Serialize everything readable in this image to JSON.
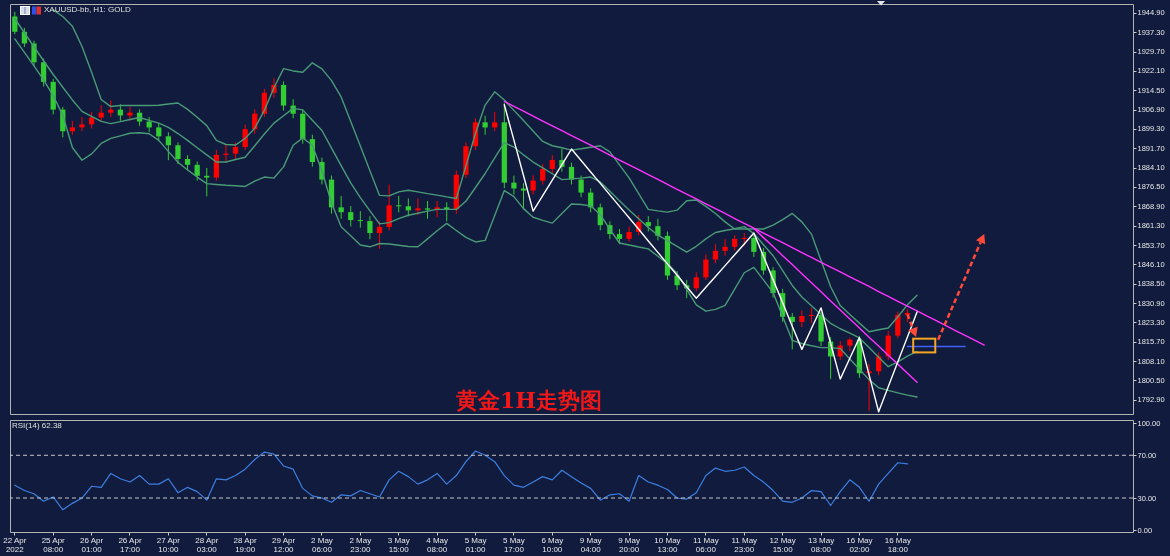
{
  "chart_data": [
    {
      "type": "candlestick",
      "title": "XAUUSD-bb, H1: GOLD",
      "annotations": [
        "黄金1H走势图"
      ],
      "categories": [
        null,
        null,
        null,
        null,
        null,
        null,
        null,
        null,
        null,
        null,
        null,
        null,
        null,
        null,
        null,
        null,
        null,
        null,
        null,
        null,
        null,
        null,
        null,
        null,
        null,
        null,
        null,
        null,
        null,
        null,
        null,
        null,
        null,
        null,
        null,
        null,
        null,
        null,
        null,
        null,
        null,
        null,
        null,
        null,
        null,
        null,
        null,
        null,
        null,
        null,
        null,
        null,
        null,
        null,
        null,
        null,
        null,
        null,
        null,
        null,
        null,
        null,
        null,
        null,
        null,
        null,
        null,
        null,
        null,
        null,
        null,
        null,
        null,
        null,
        null,
        null,
        null,
        null,
        null,
        null,
        null,
        null,
        null,
        null,
        null,
        null,
        null,
        null,
        null,
        null,
        null,
        null,
        null,
        null,
        null,
        null,
        null,
        null,
        null,
        null,
        null,
        null,
        null,
        null,
        null,
        null,
        null,
        null,
        null,
        null,
        null,
        null,
        null,
        null,
        null,
        null,
        null
      ],
      "ohlc": [
        [
          1943.5,
          1945.3,
          1936.5,
          1937.5
        ],
        [
          1937.5,
          1939,
          1931.5,
          1932.9
        ],
        [
          1932.9,
          1934,
          1924,
          1925.5
        ],
        [
          1925.5,
          1927,
          1916,
          1917.8
        ],
        [
          1917.8,
          1919,
          1905,
          1906.9
        ],
        [
          1906.9,
          1908,
          1896,
          1898.4
        ],
        [
          1898.4,
          1902.5,
          1897,
          1899.9
        ],
        [
          1899.9,
          1904,
          1898.5,
          1901.1
        ],
        [
          1901.1,
          1906,
          1899.5,
          1903.8
        ],
        [
          1903.8,
          1908.5,
          1902,
          1905.7
        ],
        [
          1905.7,
          1910.5,
          1904,
          1906.9
        ],
        [
          1906.9,
          1909,
          1902.5,
          1904.6
        ],
        [
          1904.6,
          1908,
          1902.5,
          1905.7
        ],
        [
          1905.7,
          1907,
          1900.5,
          1902.2
        ],
        [
          1902.2,
          1904,
          1898,
          1899.9
        ],
        [
          1899.9,
          1901.5,
          1894.5,
          1896.4
        ],
        [
          1896.4,
          1898,
          1887,
          1892.9
        ],
        [
          1892.9,
          1894,
          1885.5,
          1887.5
        ],
        [
          1887.5,
          1889,
          1883.5,
          1885.2
        ],
        [
          1885.2,
          1886.5,
          1879,
          1880.9
        ],
        [
          1880.9,
          1884,
          1872.8,
          1880.2
        ],
        [
          1880.2,
          1891,
          1879,
          1889.1
        ],
        [
          1889.1,
          1893,
          1886,
          1889.6
        ],
        [
          1889.6,
          1894,
          1887.5,
          1892.2
        ],
        [
          1892.2,
          1901,
          1891,
          1899.2
        ],
        [
          1899.2,
          1907,
          1897.5,
          1905.3
        ],
        [
          1905.3,
          1915,
          1904,
          1913.5
        ],
        [
          1913.5,
          1919.3,
          1911.5,
          1916.6
        ],
        [
          1916.6,
          1918,
          1906.5,
          1908.5
        ],
        [
          1908.5,
          1911,
          1903.5,
          1905.3
        ],
        [
          1905.3,
          1907,
          1893.5,
          1895.3
        ],
        [
          1895.3,
          1897,
          1884.5,
          1886.3
        ],
        [
          1886.3,
          1888,
          1877.5,
          1879.4
        ],
        [
          1879.4,
          1881,
          1866,
          1868.5
        ],
        [
          1868.5,
          1873,
          1864,
          1866.6
        ],
        [
          1866.6,
          1869,
          1861,
          1863.5
        ],
        [
          1863.5,
          1867,
          1860.5,
          1863.1
        ],
        [
          1863.1,
          1865,
          1856,
          1858.4
        ],
        [
          1858.4,
          1863,
          1852.2,
          1860.8
        ],
        [
          1860.8,
          1877.5,
          1859.5,
          1869.3
        ],
        [
          1869.3,
          1873,
          1866.5,
          1868.9
        ],
        [
          1868.9,
          1872,
          1865,
          1867.3
        ],
        [
          1867.3,
          1872,
          1865.5,
          1868.1
        ],
        [
          1868.1,
          1871,
          1864,
          1867.6
        ],
        [
          1867.6,
          1871,
          1864.5,
          1868.5
        ],
        [
          1868.5,
          1870.5,
          1863,
          1867.7
        ],
        [
          1867.7,
          1883,
          1866,
          1881.3
        ],
        [
          1881.3,
          1894,
          1880,
          1892.5
        ],
        [
          1892.5,
          1903.5,
          1891,
          1901.9
        ],
        [
          1901.9,
          1904.5,
          1897,
          1899.9
        ],
        [
          1899.9,
          1906,
          1898.5,
          1901.9
        ],
        [
          1901.9,
          1909.6,
          1876,
          1878.2
        ],
        [
          1878.2,
          1881,
          1873.5,
          1875.9
        ],
        [
          1875.9,
          1878,
          1867.7,
          1875.1
        ],
        [
          1875.1,
          1881,
          1873.5,
          1879
        ],
        [
          1879,
          1885.5,
          1877.5,
          1883.6
        ],
        [
          1883.6,
          1889,
          1882,
          1887.1
        ],
        [
          1887.1,
          1891.4,
          1882.5,
          1884.4
        ],
        [
          1884.4,
          1886,
          1877.5,
          1879.4
        ],
        [
          1879.4,
          1881,
          1872.5,
          1874.3
        ],
        [
          1874.3,
          1876,
          1866.5,
          1868.5
        ],
        [
          1868.5,
          1870,
          1859.5,
          1861.5
        ],
        [
          1861.5,
          1863,
          1856,
          1858
        ],
        [
          1858,
          1860,
          1854,
          1856.1
        ],
        [
          1856.1,
          1861,
          1855,
          1858.8
        ],
        [
          1858.8,
          1865.5,
          1857.5,
          1862.7
        ],
        [
          1862.7,
          1865,
          1859,
          1861.1
        ],
        [
          1861.1,
          1864,
          1855.5,
          1857.3
        ],
        [
          1857.3,
          1859,
          1840,
          1841.7
        ],
        [
          1841.7,
          1843.5,
          1836,
          1837.9
        ],
        [
          1837.9,
          1840,
          1832.8,
          1836.7
        ],
        [
          1836.7,
          1843,
          1835.5,
          1841
        ],
        [
          1841,
          1850,
          1840,
          1848
        ],
        [
          1848,
          1854,
          1846.5,
          1851.4
        ],
        [
          1851.4,
          1856,
          1849.5,
          1853
        ],
        [
          1853,
          1857.5,
          1851.5,
          1856.1
        ],
        [
          1856.1,
          1858.4,
          1853.5,
          1856.5
        ],
        [
          1856.5,
          1858,
          1849,
          1851
        ],
        [
          1851,
          1852.5,
          1842,
          1843.7
        ],
        [
          1843.7,
          1845,
          1833,
          1834.8
        ],
        [
          1834.8,
          1836.5,
          1823.5,
          1825.5
        ],
        [
          1825.5,
          1827,
          1812.7,
          1823.5
        ],
        [
          1823.5,
          1828,
          1821.5,
          1825.8
        ],
        [
          1825.8,
          1829,
          1823,
          1826.2
        ],
        [
          1826.2,
          1827.5,
          1814,
          1815.8
        ],
        [
          1815.8,
          1817.5,
          1801,
          1809.9
        ],
        [
          1809.9,
          1816,
          1808.5,
          1814.2
        ],
        [
          1814.2,
          1817.3,
          1812,
          1816.5
        ],
        [
          1816.5,
          1818,
          1801.5,
          1803.3
        ],
        [
          1803.3,
          1807,
          1788.6,
          1804.1
        ],
        [
          1804.1,
          1811.5,
          1802.5,
          1809.9
        ],
        [
          1809.9,
          1820,
          1808.5,
          1818.1
        ],
        [
          1818.1,
          1827.5,
          1817,
          1826.2
        ],
        [
          1826.2,
          1828.5,
          1823.5,
          1827
        ],
        null,
        null,
        null,
        null,
        null,
        null,
        null,
        null,
        null,
        null,
        null,
        null,
        null,
        null,
        null,
        null,
        null,
        null,
        null,
        null,
        null,
        null,
        null
      ],
      "colors": [
        "#32cd32",
        "#32cd32",
        "#32cd32",
        "#32cd32",
        "#32cd32",
        "#32cd32",
        "#ff0000",
        "#ff0000",
        "#ff0000",
        "#ff0000",
        "#ff0000",
        "#32cd32",
        "#ff0000",
        "#32cd32",
        "#32cd32",
        "#32cd32",
        "#32cd32",
        "#32cd32",
        "#32cd32",
        "#32cd32",
        "#32cd32",
        "#ff0000",
        "#ff0000",
        "#ff0000",
        "#ff0000",
        "#ff0000",
        "#ff0000",
        "#ff0000",
        "#32cd32",
        "#32cd32",
        "#32cd32",
        "#32cd32",
        "#32cd32",
        "#32cd32",
        "#32cd32",
        "#32cd32",
        "#32cd32",
        "#32cd32",
        "#ff0000",
        "#ff0000",
        "#32cd32",
        "#32cd32",
        "#ff0000",
        "#32cd32",
        "#ff0000",
        "#32cd32",
        "#ff0000",
        "#ff0000",
        "#ff0000",
        "#32cd32",
        "#ff0000",
        "#32cd32",
        "#32cd32",
        "#32cd32",
        "#ff0000",
        "#ff0000",
        "#ff0000",
        "#32cd32",
        "#32cd32",
        "#32cd32",
        "#32cd32",
        "#32cd32",
        "#32cd32",
        "#32cd32",
        "#ff0000",
        "#ff0000",
        "#32cd32",
        "#32cd32",
        "#32cd32",
        "#32cd32",
        "#32cd32",
        "#ff0000",
        "#ff0000",
        "#ff0000",
        "#ff0000",
        "#ff0000",
        "#ff0000",
        "#32cd32",
        "#32cd32",
        "#32cd32",
        "#32cd32",
        "#32cd32",
        "#ff0000",
        "#ff0000",
        "#32cd32",
        "#32cd32",
        "#ff0000",
        "#ff0000",
        "#32cd32",
        "#ff0000",
        "#ff0000",
        "#ff0000",
        "#ff0000",
        "#ff0000",
        null,
        null,
        null,
        null,
        null,
        null,
        null,
        null,
        null,
        null,
        null,
        null,
        null,
        null,
        null,
        null,
        null,
        null,
        null,
        null,
        null,
        null,
        null
      ],
      "series": [
        {
          "type": "line",
          "color": "#4a9a78",
          "values": [
            null,
            null,
            null,
            null,
            1946.1,
            1943.5,
            1939.7,
            1931.7,
            1921.6,
            1910.9,
            1908.1,
            1908.5,
            1908.5,
            1908.5,
            1908.5,
            1908.6,
            1909.1,
            1909.5,
            1907.0,
            1903.9,
            1900.6,
            1894.8,
            1893.2,
            1893.0,
            1895.6,
            1899.6,
            1906.6,
            1915.5,
            1923.0,
            1922.1,
            1921.6,
            1925.3,
            1922.9,
            1918.3,
            1911.9,
            1902.2,
            1892.6,
            1882.9,
            1873.2,
            1873.0,
            1874.6,
            1875.2,
            1874.6,
            1873.9,
            1873.3,
            1872.6,
            1872.0,
            1884.8,
            1897.6,
            1908.7,
            1913.9,
            1910.7,
            1906.6,
            1902.6,
            1898.5,
            1894.4,
            1892.7,
            1891.9,
            1891.0,
            1891.5,
            1892.1,
            1892.7,
            1890.3,
            1885.2,
            1880.1,
            1873.9,
            1867.7,
            1867.1,
            1866.6,
            1867.4,
            1871.1,
            1871.4,
            1868.9,
            1866.1,
            1862.8,
            1860.0,
            1860.0,
            1860.0,
            1860.0,
            1861.5,
            1863.7,
            1866.1,
            1862.8,
            1858.0,
            1847.6,
            1837.3,
            1829.9,
            1826.4,
            1823.0,
            1819.6,
            1820.4,
            1821.1,
            1825.5,
            1830.2,
            1834.0,
            null,
            null,
            null,
            null,
            null,
            null,
            null,
            null,
            null,
            null,
            null,
            null,
            null,
            null,
            null,
            null,
            null,
            null,
            null,
            null,
            null,
            null
          ]
        },
        {
          "type": "line",
          "color": "#4a9a78",
          "values": [
            1942.6,
            1937.1,
            1931.6,
            1926.1,
            1920.7,
            1915.7,
            1910.7,
            1906.2,
            1904.2,
            1902.3,
            1901.4,
            1902.2,
            1903.0,
            1903.8,
            1902.7,
            1901.6,
            1899.9,
            1897.5,
            1894.8,
            1891.9,
            1889.1,
            1886.3,
            1886.3,
            1887.3,
            1888.2,
            1892.7,
            1897.3,
            1901.6,
            1904.5,
            1907.4,
            1906.8,
            1902.7,
            1898.7,
            1891.8,
            1884.9,
            1878.1,
            1872.3,
            1867.1,
            1862.0,
            1862.5,
            1864.1,
            1865.4,
            1866.2,
            1867.0,
            1867.7,
            1867.7,
            1867.7,
            1870.9,
            1876.3,
            1881.8,
            1887.9,
            1893.9,
            1892.2,
            1889.1,
            1886.3,
            1884.0,
            1881.7,
            1879.4,
            1879.7,
            1880.0,
            1880.4,
            1878.5,
            1874.8,
            1871.1,
            1867.5,
            1864.0,
            1860.6,
            1857.6,
            1855.4,
            1853.2,
            1850.9,
            1853.2,
            1856.1,
            1858.6,
            1859.4,
            1860.1,
            1860.9,
            1858.2,
            1853.8,
            1849.5,
            1843.6,
            1837.8,
            1833.3,
            1829.8,
            1826.4,
            1822.9,
            1820.8,
            1819.1,
            1817.2,
            1813.4,
            1809.6,
            1805.9,
            1807.8,
            1810.0,
            1811.9,
            null,
            null,
            null,
            null,
            null,
            null,
            null,
            null,
            null,
            null,
            null,
            null,
            null,
            null,
            null,
            null,
            null,
            null,
            null,
            null,
            null,
            null
          ]
        },
        {
          "type": "line",
          "color": "#4a9a78",
          "values": [
            1934.7,
            1929.4,
            1924.1,
            1918.6,
            1912.4,
            1904.7,
            1892.0,
            1887.0,
            1889.5,
            1893.6,
            1895.6,
            1896.6,
            1897.6,
            1897.8,
            1897.4,
            1894.8,
            1890.5,
            1886.2,
            1883.2,
            1880.4,
            1877.8,
            1877.5,
            1877.2,
            1877.0,
            1876.7,
            1878.8,
            1880.4,
            1880.0,
            1884.4,
            1892.9,
            1895.8,
            1892.9,
            1882.8,
            1870.2,
            1860.9,
            1857.3,
            1853.7,
            1853.0,
            1854.3,
            1854.1,
            1853.6,
            1853.1,
            1853.0,
            1856.1,
            1859.3,
            1862.2,
            1859.4,
            1856.7,
            1854.9,
            1855.5,
            1865.3,
            1875.1,
            1872.7,
            1868.0,
            1864.6,
            1863.4,
            1862.3,
            1866.1,
            1869.8,
            1869.6,
            1869.1,
            1865.6,
            1859.8,
            1854.5,
            1853.7,
            1852.9,
            1852.2,
            1849.3,
            1846.4,
            1842.5,
            1836.3,
            1830.2,
            1827.7,
            1828.4,
            1830.0,
            1836.4,
            1842.8,
            1844.9,
            1840.0,
            1835.0,
            1825.6,
            1816.2,
            1815.0,
            1814.1,
            1813.4,
            1813.4,
            1813.0,
            1808.9,
            1804.9,
            1800.8,
            1797.6,
            1796.6,
            1795.6,
            1794.7,
            1794.0,
            null,
            null,
            null,
            null,
            null,
            null,
            null,
            null,
            null,
            null,
            null,
            null,
            null,
            null,
            null,
            null,
            null,
            null,
            null,
            null,
            null,
            null
          ]
        },
        {
          "type": "line",
          "color": "#ff33ff",
          "values": [
            null,
            null,
            null,
            null,
            null,
            null,
            null,
            null,
            null,
            null,
            null,
            null,
            null,
            null,
            null,
            null,
            null,
            null,
            null,
            null,
            null,
            null,
            null,
            null,
            null,
            null,
            null,
            null,
            null,
            null,
            null,
            null,
            null,
            null,
            null,
            null,
            null,
            null,
            null,
            null,
            null,
            null,
            null,
            null,
            null,
            null,
            null,
            null,
            null,
            null,
            null,
            1910.1,
            1908.2,
            1906.3,
            1904.3,
            1902.4,
            1900.5,
            1898.6,
            1896.7,
            1894.8,
            1892.9,
            1891.0,
            1889.0,
            1887.1,
            1885.2,
            1883.3,
            1881.4,
            1879.5,
            1877.5,
            1875.6,
            1873.7,
            1871.8,
            1869.9,
            1868.0,
            1866.1,
            1864.1,
            1862.2,
            1860.3,
            1858.4,
            1856.5,
            1854.6,
            1852.7,
            1850.7,
            1848.8,
            1846.9,
            1845.0,
            1843.1,
            1841.2,
            1839.3,
            1837.4,
            1835.4,
            1833.5,
            1831.6,
            1829.7,
            1827.8,
            1825.9,
            1824.0,
            1822.0,
            1820.1,
            1818.2,
            1816.3,
            1814.4,
            null,
            null,
            null,
            null,
            null,
            null,
            null,
            null,
            null,
            null,
            null,
            null,
            null,
            null,
            null
          ]
        },
        {
          "type": "line",
          "color": "#ff33ff",
          "values": [
            null,
            null,
            null,
            null,
            null,
            null,
            null,
            null,
            null,
            null,
            null,
            null,
            null,
            null,
            null,
            null,
            null,
            null,
            null,
            null,
            null,
            null,
            null,
            null,
            null,
            null,
            null,
            null,
            null,
            null,
            null,
            null,
            null,
            null,
            null,
            null,
            null,
            null,
            null,
            null,
            null,
            null,
            null,
            null,
            null,
            null,
            null,
            null,
            null,
            null,
            null,
            null,
            null,
            null,
            null,
            null,
            null,
            null,
            null,
            null,
            null,
            null,
            null,
            null,
            null,
            null,
            null,
            null,
            null,
            null,
            null,
            null,
            null,
            null,
            null,
            null,
            null,
            1860.2,
            1856.6,
            1853.1,
            1849.5,
            1846.0,
            1842.4,
            1838.9,
            1835.3,
            1831.7,
            1828.2,
            1824.6,
            1821.1,
            1817.5,
            1814.0,
            1810.4,
            1806.9,
            1803.3,
            1799.8,
            null,
            null,
            null,
            null,
            null,
            null,
            null,
            null,
            null,
            null,
            null,
            null,
            null,
            null,
            null,
            null,
            null,
            null,
            null,
            null,
            null,
            null
          ]
        },
        {
          "type": "line",
          "color": "#ffffff",
          "values": [
            null,
            null,
            null,
            null,
            null,
            null,
            null,
            null,
            null,
            null,
            null,
            null,
            null,
            null,
            null,
            null,
            null,
            null,
            null,
            null,
            null,
            null,
            null,
            null,
            null,
            null,
            null,
            null,
            null,
            null,
            null,
            null,
            null,
            null,
            null,
            null,
            null,
            null,
            null,
            null,
            null,
            null,
            null,
            null,
            null,
            null,
            null,
            null,
            null,
            null,
            null,
            1908.8,
            1894.9,
            1881.0,
            1867.0,
            1873.1,
            1879.2,
            1885.3,
            1891.4,
            1886.9,
            1882.4,
            1877.9,
            1873.4,
            1868.9,
            1864.4,
            1859.9,
            1855.3,
            1850.8,
            1846.3,
            1841.8,
            1837.3,
            1832.8,
            1837.1,
            1841.3,
            1845.6,
            1849.9,
            1854.1,
            1858.4,
            1849.3,
            1840.1,
            1831.0,
            1821.8,
            1812.7,
            1820.9,
            1829.0,
            1815.0,
            1801.0,
            1809.2,
            1817.3,
            1802.8,
            1788.2,
            1798.0,
            1807.8,
            1817.6,
            1827.4,
            null,
            null,
            null,
            null,
            null,
            null,
            null,
            null,
            null,
            null,
            null,
            null,
            null,
            null,
            null,
            null,
            null,
            null,
            null,
            null,
            null,
            null
          ]
        },
        {
          "type": "line",
          "color": "#4060ff",
          "values": [
            null,
            null,
            null,
            null,
            null,
            null,
            null,
            null,
            null,
            null,
            null,
            null,
            null,
            null,
            null,
            null,
            null,
            null,
            null,
            null,
            null,
            null,
            null,
            null,
            null,
            null,
            null,
            null,
            null,
            null,
            null,
            null,
            null,
            null,
            null,
            null,
            null,
            null,
            null,
            null,
            null,
            null,
            null,
            null,
            null,
            null,
            null,
            null,
            null,
            null,
            null,
            null,
            null,
            null,
            null,
            null,
            null,
            null,
            null,
            null,
            null,
            null,
            null,
            null,
            null,
            null,
            null,
            null,
            null,
            null,
            null,
            null,
            null,
            null,
            null,
            null,
            null,
            null,
            null,
            null,
            null,
            null,
            null,
            null,
            null,
            null,
            null,
            null,
            null,
            null,
            null,
            null,
            null,
            1813.8,
            1813.8,
            1813.8,
            1813.8,
            1813.8,
            1813.8,
            1813.8,
            null,
            null,
            null,
            null,
            null,
            null,
            null,
            null,
            null,
            null,
            null,
            null,
            null,
            null,
            null,
            null,
            null
          ]
        }
      ],
      "ylim": [
        1787.3,
        1948.4
      ],
      "yticks": [
        {
          "value": 1792.9,
          "label": "1792.90"
        },
        {
          "value": 1800.5,
          "label": "1800.50"
        },
        {
          "value": 1808.1,
          "label": "1808.10"
        },
        {
          "value": 1815.7,
          "label": "1815.70"
        },
        {
          "value": 1823.3,
          "label": "1823.30"
        },
        {
          "value": 1830.9,
          "label": "1830.90"
        },
        {
          "value": 1838.5,
          "label": "1838.50"
        },
        {
          "value": 1846.1,
          "label": "1846.10"
        },
        {
          "value": 1853.7,
          "label": "1853.70"
        },
        {
          "value": 1861.3,
          "label": "1861.30"
        },
        {
          "value": 1868.9,
          "label": "1868.90"
        },
        {
          "value": 1876.5,
          "label": "1876.50"
        },
        {
          "value": 1884.1,
          "label": "1884.10"
        },
        {
          "value": 1891.7,
          "label": "1891.70"
        },
        {
          "value": 1899.3,
          "label": "1899.30"
        },
        {
          "value": 1906.9,
          "label": "1906.90"
        },
        {
          "value": 1914.5,
          "label": "1914.50"
        },
        {
          "value": 1922.1,
          "label": "1922.10"
        },
        {
          "value": 1929.7,
          "label": "1929.70"
        },
        {
          "value": 1937.3,
          "label": "1937.30"
        },
        {
          "value": 1944.9,
          "label": "1944.90"
        }
      ],
      "tick_labels": "y"
    },
    {
      "type": "line",
      "title": "RSI(14) 62.38",
      "color": "#3d7fe0",
      "categories": [
        "22 Apr 2022",
        null,
        null,
        null,
        "25 Apr 08:00",
        null,
        null,
        null,
        "26 Apr 01:00",
        null,
        null,
        null,
        "26 Apr 17:00",
        null,
        null,
        null,
        "27 Apr 10:00",
        null,
        null,
        null,
        "28 Apr 03:00",
        null,
        null,
        null,
        "28 Apr 19:00",
        null,
        null,
        null,
        "29 Apr 12:00",
        null,
        null,
        null,
        "2 May 06:00",
        null,
        null,
        null,
        "2 May 23:00",
        null,
        null,
        null,
        "3 May 15:00",
        null,
        null,
        null,
        "4 May 08:00",
        null,
        null,
        null,
        "5 May 01:00",
        null,
        null,
        null,
        "5 May 17:00",
        null,
        null,
        null,
        "6 May 10:00",
        null,
        null,
        null,
        "9 May 04:00",
        null,
        null,
        null,
        "9 May 20:00",
        null,
        null,
        null,
        "10 May 13:00",
        null,
        null,
        null,
        "11 May 06:00",
        null,
        null,
        null,
        "11 May 23:00",
        null,
        null,
        null,
        "12 May 15:00",
        null,
        null,
        null,
        "13 May 08:00",
        null,
        null,
        null,
        "16 May 02:00",
        null,
        null,
        null,
        "16 May 18:00",
        null,
        null,
        null,
        null,
        null,
        null,
        null,
        null,
        null,
        null,
        null,
        null,
        null,
        null,
        null,
        null,
        null,
        null,
        null,
        null,
        null,
        null,
        null,
        null
      ],
      "values": [
        42,
        37,
        34,
        27,
        31,
        19,
        25,
        30,
        41,
        40,
        53,
        48,
        45,
        51,
        43,
        43,
        48,
        35,
        40,
        36,
        28,
        48,
        47,
        51,
        57,
        66,
        73,
        71,
        60,
        57,
        39,
        32,
        30,
        26,
        33,
        32,
        37,
        34,
        31,
        47,
        55,
        50,
        43,
        47,
        53,
        43,
        51,
        64,
        74,
        70,
        64,
        51,
        42,
        40,
        45,
        50,
        47,
        56,
        50,
        44,
        39,
        28,
        33,
        34,
        27,
        51,
        45,
        42,
        38,
        30,
        29,
        35,
        51,
        58,
        55,
        56,
        59,
        51,
        45,
        37,
        27,
        26,
        30,
        37,
        36,
        23,
        36,
        47,
        40,
        27,
        43,
        53,
        63,
        62,
        null,
        null,
        null,
        null,
        null,
        null,
        null,
        null,
        null,
        null,
        null,
        null,
        null,
        null,
        null,
        null,
        null,
        null,
        null,
        null,
        null,
        null,
        null
      ],
      "ylim": [
        -1.8,
        103
      ],
      "yticks": [
        {
          "value": 0,
          "label": "0.00"
        },
        {
          "value": 30,
          "label": "30.00"
        },
        {
          "value": 70,
          "label": "70.00"
        },
        {
          "value": 100,
          "label": "100.00"
        }
      ],
      "ref_lines": [
        {
          "axis": "y",
          "value": 70,
          "color": "#c8c8c8",
          "line_style": "dashed"
        },
        {
          "axis": "y",
          "value": 30,
          "color": "#c8c8c8",
          "line_style": "dashed"
        }
      ]
    }
  ]
}
